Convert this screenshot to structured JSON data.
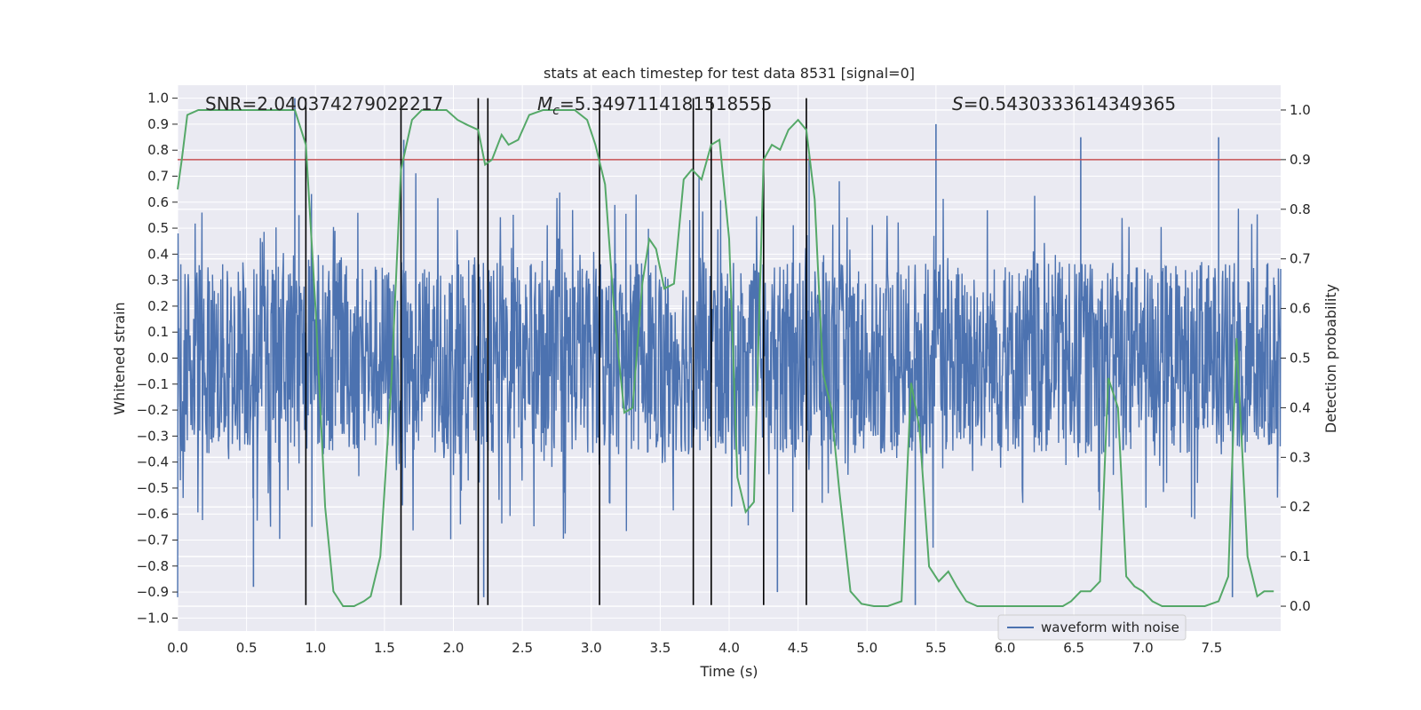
{
  "colors": {
    "plot_bg": "#eaeaf2",
    "grid": "#ffffff",
    "waveform": "#4c72b0",
    "probability": "#55a868",
    "threshold": "#c44e52",
    "event": "#000000",
    "text": "#262626"
  },
  "chart_data": {
    "type": "line",
    "title": "stats at each timestep for test data 8531 [signal=0]",
    "xlabel": "Time (s)",
    "ylabel_left": "Whitened strain",
    "ylabel_right": "Detection probability",
    "xlim": [
      0.0,
      8.0
    ],
    "ylim_left": [
      -1.05,
      1.05
    ],
    "ylim_right": [
      -0.05,
      1.05
    ],
    "x_ticks": [
      0.0,
      0.5,
      1.0,
      1.5,
      2.0,
      2.5,
      3.0,
      3.5,
      4.0,
      4.5,
      5.0,
      5.5,
      6.0,
      6.5,
      7.0,
      7.5
    ],
    "x_tick_labels": [
      "0.0",
      "0.5",
      "1.0",
      "1.5",
      "2.0",
      "2.5",
      "3.0",
      "3.5",
      "4.0",
      "4.5",
      "5.0",
      "5.5",
      "6.0",
      "6.5",
      "7.0",
      "7.5"
    ],
    "y_ticks_left": [
      1.0,
      0.9,
      0.8,
      0.7,
      0.6,
      0.5,
      0.4,
      0.3,
      0.2,
      0.1,
      0.0,
      -0.1,
      -0.2,
      -0.3,
      -0.4,
      -0.5,
      -0.6,
      -0.7,
      -0.8,
      -0.9,
      -1.0
    ],
    "y_tick_labels_left": [
      "1.0",
      "0.9",
      "0.8",
      "0.7",
      "0.6",
      "0.5",
      "0.4",
      "0.3",
      "0.2",
      "0.1",
      "0.0",
      "−0.1",
      "−0.2",
      "−0.3",
      "−0.4",
      "−0.5",
      "−0.6",
      "−0.7",
      "−0.8",
      "−0.9",
      "−1.0"
    ],
    "y_ticks_right": [
      1.0,
      0.9,
      0.8,
      0.7,
      0.6,
      0.5,
      0.4,
      0.3,
      0.2,
      0.1,
      0.0
    ],
    "y_tick_labels_right": [
      "1.0",
      "0.9",
      "0.8",
      "0.7",
      "0.6",
      "0.5",
      "0.4",
      "0.3",
      "0.2",
      "0.1",
      "0.0"
    ],
    "annotations": {
      "snr": "SNR=2.040374279022217",
      "mc_prefix": "M",
      "mc_sub": "c",
      "mc_value": "=5.3497114181518555",
      "s_prefix": "S",
      "s_value": "=0.5430333614349365"
    },
    "legend": {
      "label": "waveform with noise",
      "position": "lower-right"
    },
    "threshold": 0.9,
    "event_lines": [
      0.93,
      1.62,
      2.18,
      2.25,
      3.06,
      3.74,
      3.87,
      4.25,
      4.56
    ],
    "event_line_range": [
      -0.95,
      1.0
    ],
    "waveform": {
      "name": "waveform with noise",
      "sample_count": 2400,
      "band_typical": 0.37,
      "band_max": 0.75,
      "peaks": [
        [
          0.85,
          1.0
        ],
        [
          0.88,
          0.55
        ],
        [
          1.64,
          0.84
        ],
        [
          4.58,
          0.78
        ],
        [
          5.5,
          0.9
        ],
        [
          6.55,
          0.85
        ],
        [
          7.55,
          0.85
        ]
      ],
      "troughs": [
        [
          2.22,
          -0.92
        ],
        [
          0.55,
          -0.88
        ],
        [
          4.35,
          -0.9
        ],
        [
          5.35,
          -0.95
        ],
        [
          7.65,
          -0.92
        ]
      ]
    },
    "series": [
      {
        "name": "Detection probability",
        "axis": "right",
        "x": [
          0.0,
          0.03,
          0.07,
          0.15,
          0.3,
          0.5,
          0.7,
          0.85,
          0.93,
          1.0,
          1.07,
          1.13,
          1.2,
          1.28,
          1.35,
          1.4,
          1.47,
          1.55,
          1.62,
          1.7,
          1.77,
          1.85,
          1.95,
          2.03,
          2.1,
          2.18,
          2.23,
          2.28,
          2.35,
          2.4,
          2.47,
          2.55,
          2.65,
          2.75,
          2.88,
          2.97,
          3.03,
          3.1,
          3.17,
          3.24,
          3.3,
          3.37,
          3.42,
          3.47,
          3.53,
          3.6,
          3.67,
          3.73,
          3.8,
          3.87,
          3.93,
          4.0,
          4.06,
          4.12,
          4.18,
          4.25,
          4.31,
          4.37,
          4.43,
          4.5,
          4.56,
          4.62,
          4.68,
          4.74,
          4.8,
          4.88,
          4.96,
          5.05,
          5.15,
          5.25,
          5.32,
          5.38,
          5.45,
          5.52,
          5.59,
          5.65,
          5.72,
          5.8,
          5.95,
          6.2,
          6.42,
          6.48,
          6.55,
          6.62,
          6.69,
          6.75,
          6.82,
          6.88,
          6.94,
          7.0,
          7.07,
          7.14,
          7.3,
          7.45,
          7.55,
          7.62,
          7.68,
          7.76,
          7.83,
          7.88,
          7.95
        ],
        "values": [
          0.84,
          0.9,
          0.99,
          1.0,
          1.0,
          1.0,
          1.0,
          1.0,
          0.93,
          0.6,
          0.2,
          0.03,
          0.0,
          0.0,
          0.01,
          0.02,
          0.1,
          0.45,
          0.88,
          0.98,
          1.0,
          1.0,
          1.0,
          0.98,
          0.97,
          0.96,
          0.89,
          0.9,
          0.95,
          0.93,
          0.94,
          0.99,
          1.0,
          1.0,
          1.0,
          0.98,
          0.93,
          0.85,
          0.58,
          0.39,
          0.4,
          0.65,
          0.74,
          0.72,
          0.64,
          0.65,
          0.86,
          0.88,
          0.86,
          0.93,
          0.94,
          0.74,
          0.26,
          0.19,
          0.21,
          0.9,
          0.93,
          0.92,
          0.96,
          0.98,
          0.96,
          0.82,
          0.47,
          0.4,
          0.23,
          0.03,
          0.005,
          0.0,
          0.0,
          0.01,
          0.45,
          0.36,
          0.08,
          0.05,
          0.07,
          0.04,
          0.01,
          0.0,
          0.0,
          0.0,
          0.0,
          0.01,
          0.03,
          0.03,
          0.05,
          0.46,
          0.4,
          0.06,
          0.04,
          0.03,
          0.01,
          0.0,
          0.0,
          0.0,
          0.01,
          0.06,
          0.54,
          0.1,
          0.02,
          0.03,
          0.03
        ]
      }
    ]
  }
}
